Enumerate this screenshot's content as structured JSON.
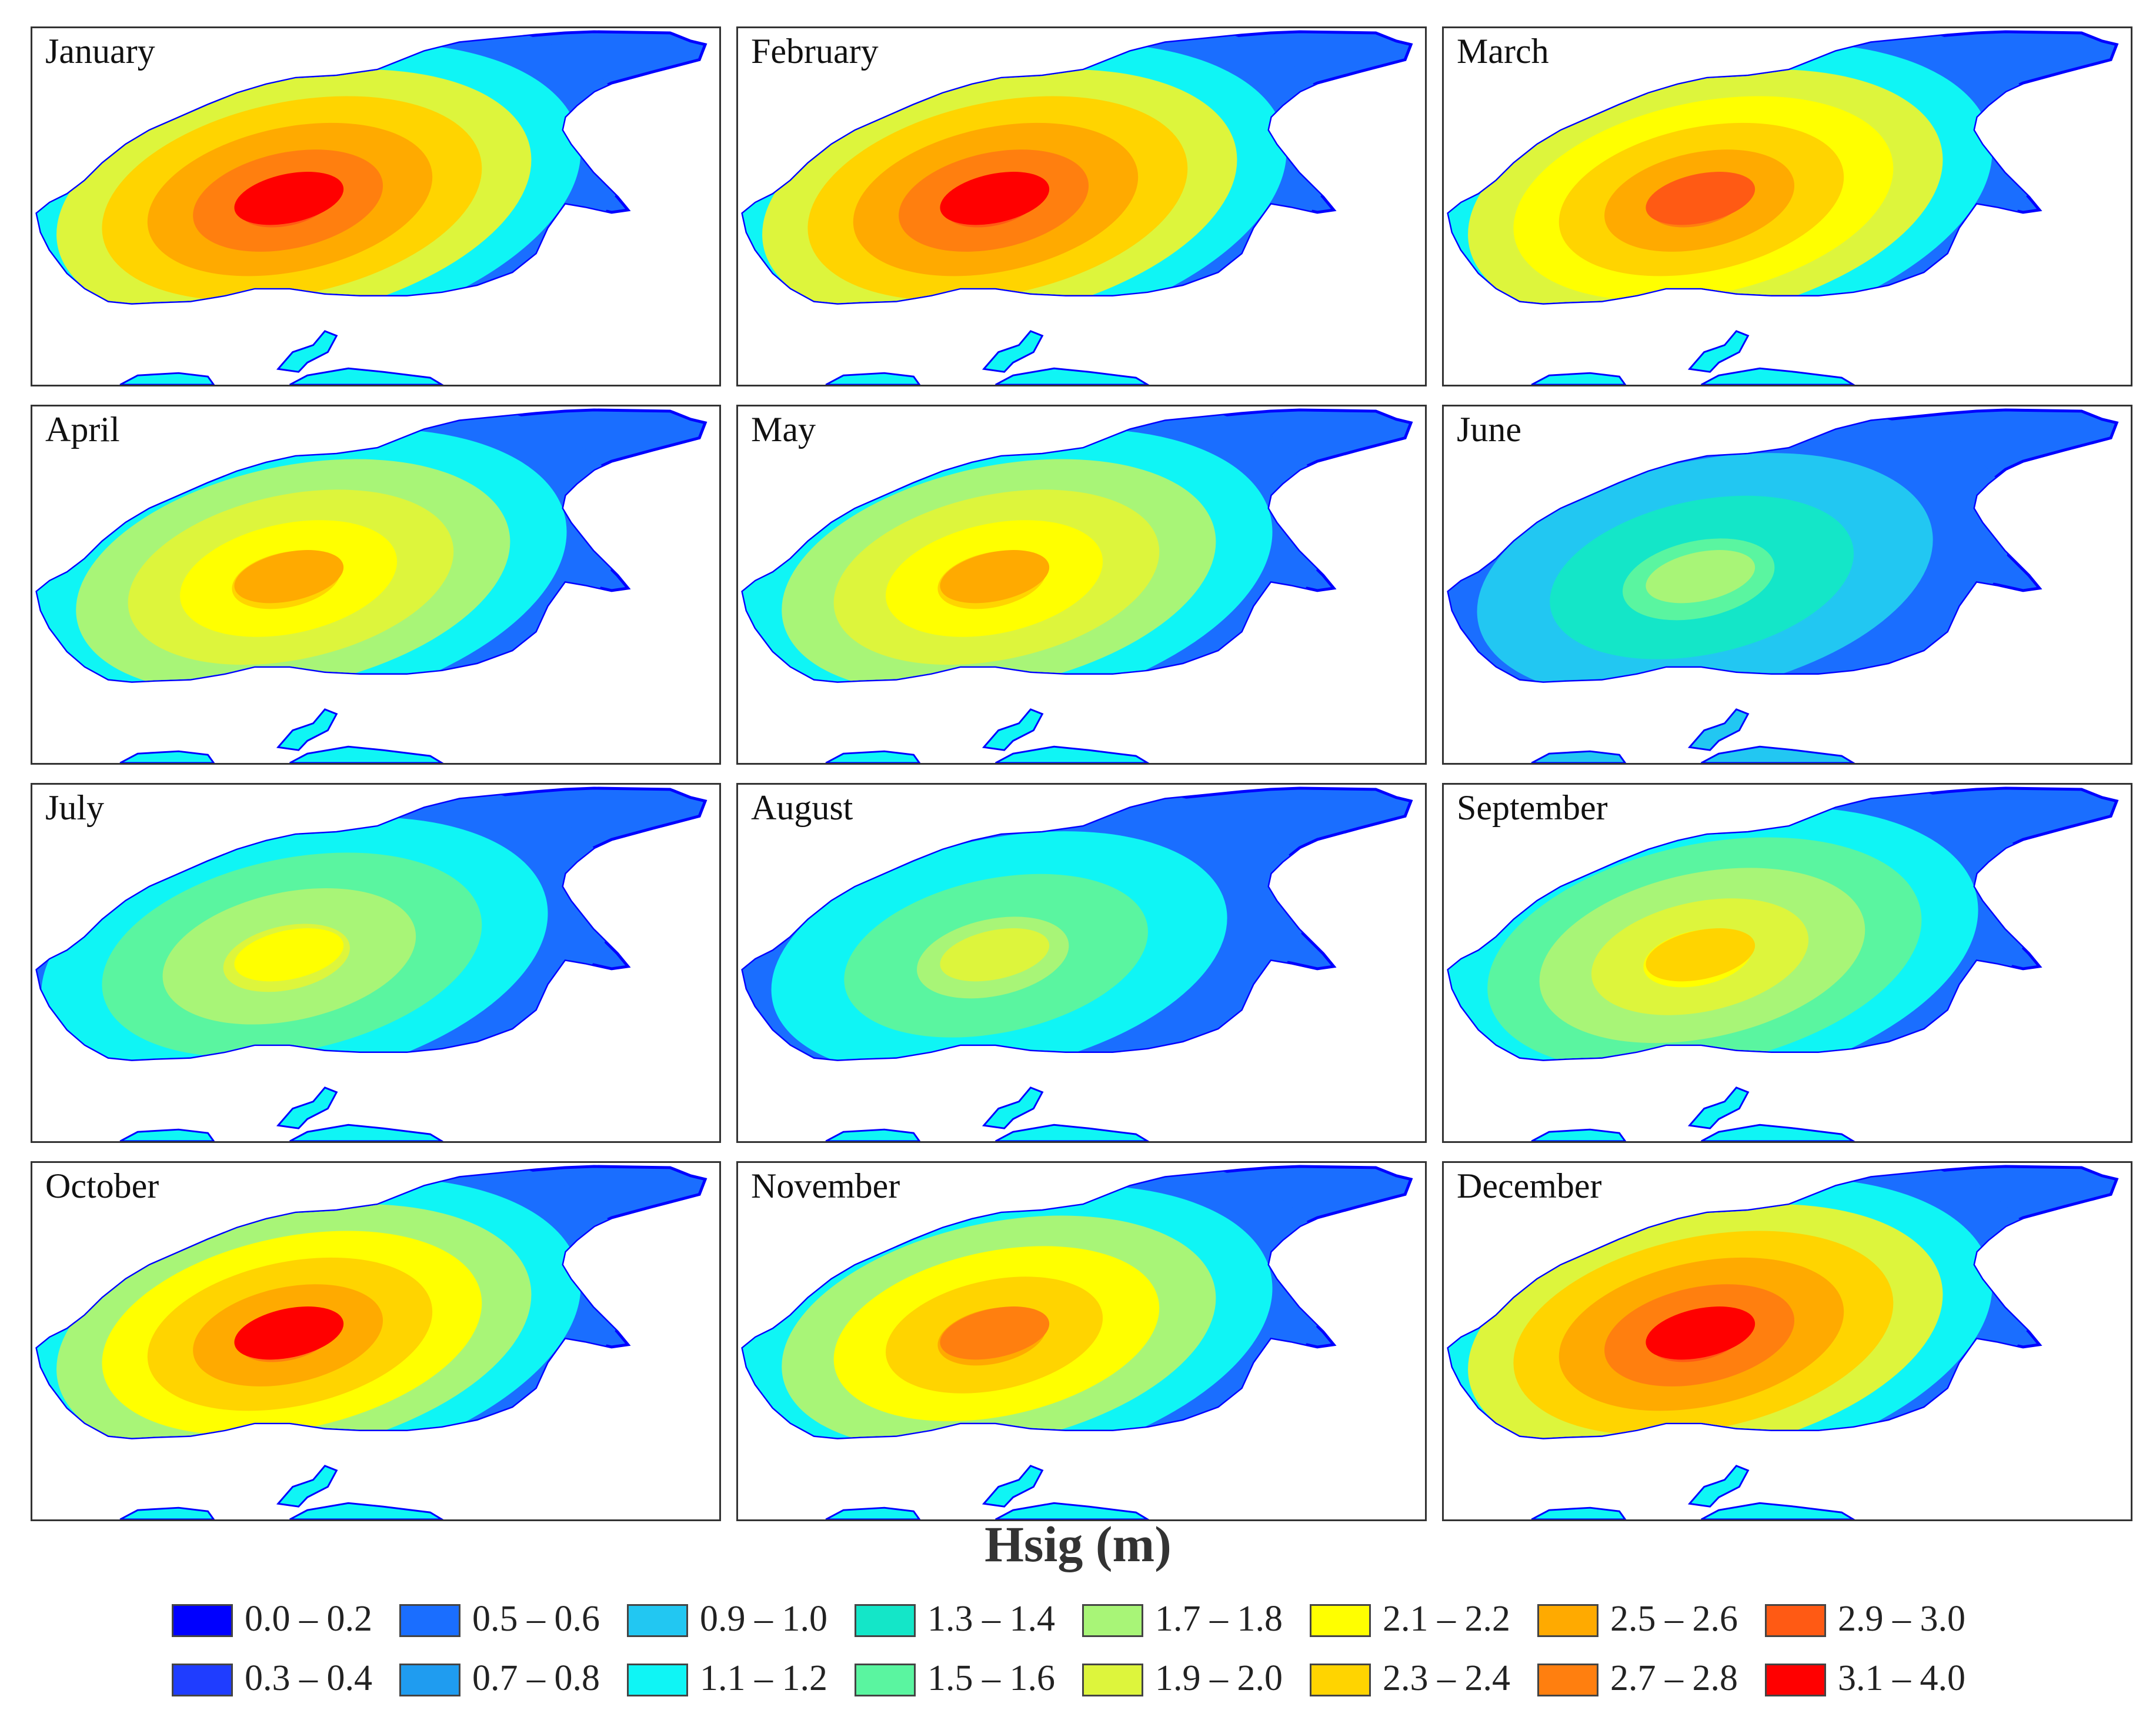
{
  "figure": {
    "panels": [
      {
        "month": "January",
        "rings": [
          2,
          5,
          9,
          11,
          12,
          13,
          14
        ],
        "hotspot": 15
      },
      {
        "month": "February",
        "rings": [
          2,
          5,
          9,
          11,
          12,
          13,
          14
        ],
        "hotspot": 15
      },
      {
        "month": "March",
        "rings": [
          2,
          5,
          9,
          10,
          11,
          12,
          13
        ],
        "hotspot": 14
      },
      {
        "month": "April",
        "rings": [
          2,
          5,
          8,
          9,
          10,
          11
        ],
        "hotspot": 12
      },
      {
        "month": "May",
        "rings": [
          2,
          5,
          8,
          9,
          10,
          11
        ],
        "hotspot": 12
      },
      {
        "month": "June",
        "rings": [
          2,
          4,
          6,
          7
        ],
        "hotspot": 8
      },
      {
        "month": "July",
        "rings": [
          2,
          5,
          7,
          8,
          9
        ],
        "hotspot": 10
      },
      {
        "month": "August",
        "rings": [
          2,
          5,
          7,
          8
        ],
        "hotspot": 9
      },
      {
        "month": "September",
        "rings": [
          2,
          5,
          7,
          8,
          9,
          10
        ],
        "hotspot": 11
      },
      {
        "month": "October",
        "rings": [
          2,
          5,
          8,
          10,
          11,
          12,
          13
        ],
        "hotspot": 15
      },
      {
        "month": "November",
        "rings": [
          2,
          5,
          8,
          10,
          11,
          12
        ],
        "hotspot": 13
      },
      {
        "month": "December",
        "rings": [
          2,
          5,
          9,
          11,
          12,
          13,
          14
        ],
        "hotspot": 15
      }
    ]
  },
  "legend": {
    "title": "Hsig (m)",
    "items": [
      {
        "label": "0.0 – 0.2",
        "color": "#0000ff"
      },
      {
        "label": "0.3 – 0.4",
        "color": "#1f3dff"
      },
      {
        "label": "0.5 – 0.6",
        "color": "#1a6eff"
      },
      {
        "label": "0.7 – 0.8",
        "color": "#1f9cf0"
      },
      {
        "label": "0.9 – 1.0",
        "color": "#22c7f2"
      },
      {
        "label": "1.1 – 1.2",
        "color": "#0ff5f5"
      },
      {
        "label": "1.3 – 1.4",
        "color": "#14e6c8"
      },
      {
        "label": "1.5 – 1.6",
        "color": "#5af5a0"
      },
      {
        "label": "1.7 – 1.8",
        "color": "#a8f577"
      },
      {
        "label": "1.9 – 2.0",
        "color": "#ddf53c"
      },
      {
        "label": "2.1 – 2.2",
        "color": "#ffff00"
      },
      {
        "label": "2.3 – 2.4",
        "color": "#ffd400"
      },
      {
        "label": "2.5 – 2.6",
        "color": "#ffaa00"
      },
      {
        "label": "2.7 – 2.8",
        "color": "#ff7f0f"
      },
      {
        "label": "2.9 – 3.0",
        "color": "#ff5a14"
      },
      {
        "label": "3.1 – 4.0",
        "color": "#ff0000"
      }
    ]
  }
}
